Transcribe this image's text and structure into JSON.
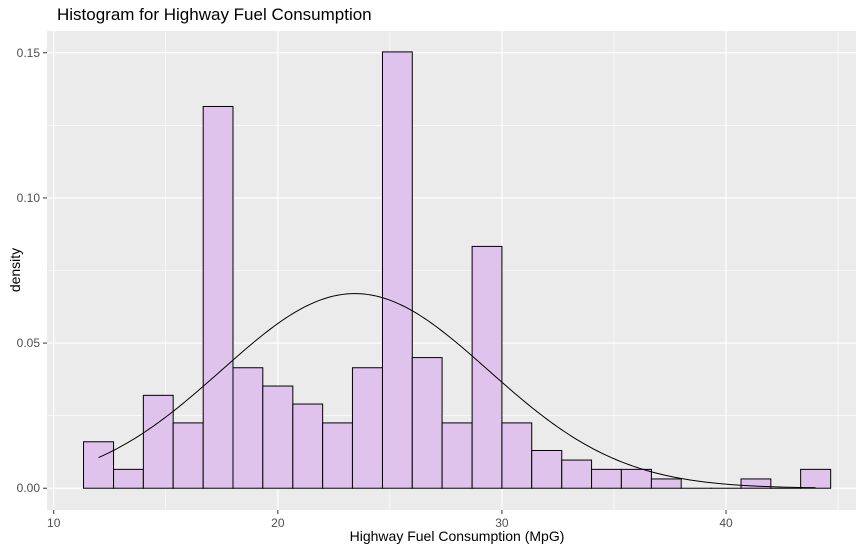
{
  "chart_data": {
    "type": "bar",
    "title": "Histogram for Highway Fuel Consumption",
    "xlabel": "Highway Fuel Consumption (MpG)",
    "ylabel": "density",
    "xlim": [
      9.7,
      45.8
    ],
    "ylim": [
      -0.0075,
      0.1575
    ],
    "xticks": [
      10,
      20,
      30,
      40
    ],
    "yticks": [
      0.0,
      0.05,
      0.1,
      0.15
    ],
    "ytick_labels": [
      "0.00",
      "0.05",
      "0.10",
      "0.15"
    ],
    "grid": true,
    "bins": [
      {
        "x0": 11.33,
        "x1": 12.67,
        "density": 0.016
      },
      {
        "x0": 12.67,
        "x1": 14.0,
        "density": 0.0065
      },
      {
        "x0": 14.0,
        "x1": 15.33,
        "density": 0.032
      },
      {
        "x0": 15.33,
        "x1": 16.67,
        "density": 0.0225
      },
      {
        "x0": 16.67,
        "x1": 18.0,
        "density": 0.1315
      },
      {
        "x0": 18.0,
        "x1": 19.33,
        "density": 0.0415
      },
      {
        "x0": 19.33,
        "x1": 20.67,
        "density": 0.0352
      },
      {
        "x0": 20.67,
        "x1": 22.0,
        "density": 0.029
      },
      {
        "x0": 22.0,
        "x1": 23.33,
        "density": 0.0225
      },
      {
        "x0": 23.33,
        "x1": 24.67,
        "density": 0.0415
      },
      {
        "x0": 24.67,
        "x1": 26.0,
        "density": 0.1503
      },
      {
        "x0": 26.0,
        "x1": 27.33,
        "density": 0.045
      },
      {
        "x0": 27.33,
        "x1": 28.67,
        "density": 0.0225
      },
      {
        "x0": 28.67,
        "x1": 30.0,
        "density": 0.0833
      },
      {
        "x0": 30.0,
        "x1": 31.33,
        "density": 0.0225
      },
      {
        "x0": 31.33,
        "x1": 32.67,
        "density": 0.013
      },
      {
        "x0": 32.67,
        "x1": 34.0,
        "density": 0.0097
      },
      {
        "x0": 34.0,
        "x1": 35.33,
        "density": 0.0065
      },
      {
        "x0": 35.33,
        "x1": 36.67,
        "density": 0.0065
      },
      {
        "x0": 36.67,
        "x1": 38.0,
        "density": 0.0032
      },
      {
        "x0": 38.0,
        "x1": 39.33,
        "density": 0.0
      },
      {
        "x0": 39.33,
        "x1": 40.67,
        "density": 0.0
      },
      {
        "x0": 40.67,
        "x1": 42.0,
        "density": 0.0032
      },
      {
        "x0": 42.0,
        "x1": 43.33,
        "density": 0.0
      },
      {
        "x0": 43.33,
        "x1": 44.67,
        "density": 0.0065
      }
    ],
    "density_curve": {
      "type": "normal",
      "mean": 23.44,
      "sd": 5.95,
      "x_range": [
        12.0,
        44.0
      ]
    },
    "colors": {
      "bar_fill": "#dfc3ec",
      "bar_outline": "#000000",
      "panel_background": "#ebebeb",
      "grid": "#ffffff",
      "curve": "#000000",
      "text": "#000000",
      "tick_label": "#4d4d4d",
      "tick_mark": "#333333"
    }
  }
}
